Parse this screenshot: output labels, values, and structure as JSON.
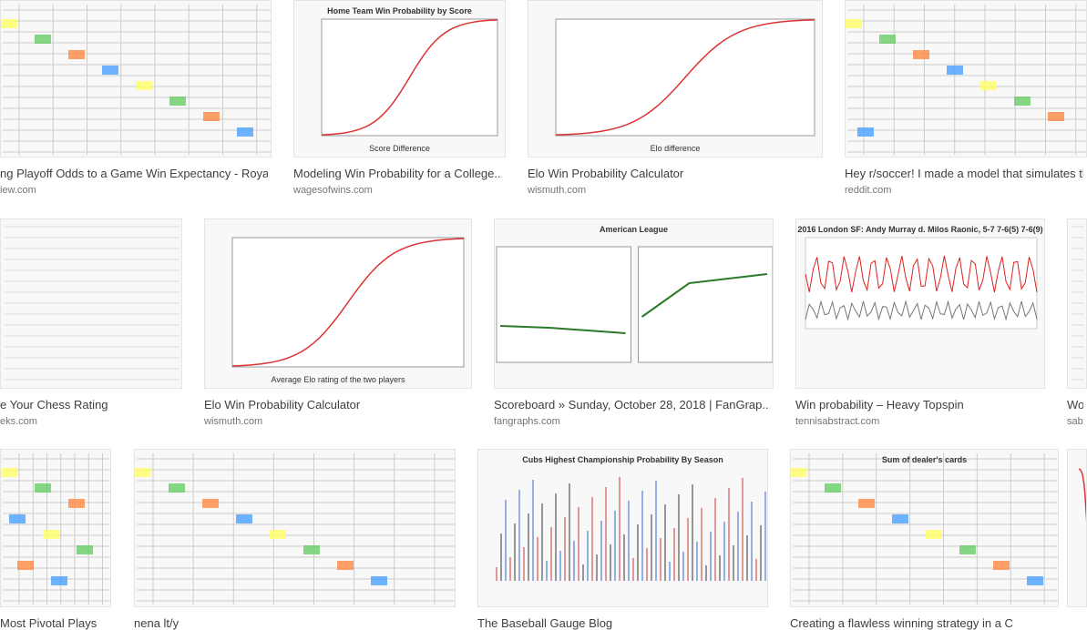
{
  "results": [
    {
      "caption": "ng Playoff Odds to a Game Win Expectancy - Roya...",
      "source": "iew.com"
    },
    {
      "caption": "Modeling Win Probability for a College...",
      "source": "wagesofwins.com",
      "thumbnail_title": "Home Team Win Probability by Score",
      "thumbnail_x_label": "Score Difference"
    },
    {
      "caption": "Elo Win Probability Calculator",
      "source": "wismuth.com",
      "thumbnail_x_label": "Elo difference"
    },
    {
      "caption": "Hey r/soccer! I made a model that simulates the",
      "source": "reddit.com"
    },
    {
      "caption": "e Your Chess Rating",
      "source": "eks.com"
    },
    {
      "caption": "Elo Win Probability Calculator",
      "source": "wismuth.com",
      "thumbnail_x_label": "Average Elo rating of the two players"
    },
    {
      "caption": "Scoreboard » Sunday, October 28, 2018 | FanGrap...",
      "source": "fangraphs.com",
      "thumbnail_title": "American League"
    },
    {
      "caption": "Win probability – Heavy Topspin",
      "source": "tennisabstract.com",
      "thumbnail_title": "2016 London SF: Andy Murray d. Milos Raonic, 5-7 7-6(5) 7-6(9)"
    },
    {
      "caption": "Wor",
      "source": "sabr"
    },
    {
      "caption": "Most Pivotal Plays"
    },
    {
      "caption": "nena lt/y"
    },
    {
      "caption": "The Baseball Gauge Blog",
      "thumbnail_title": "Cubs Highest Championship Probability By Season"
    },
    {
      "caption": "Creating a flawless winning strategy in a C",
      "thumbnail_title": "Sum of dealer's cards"
    },
    {}
  ]
}
